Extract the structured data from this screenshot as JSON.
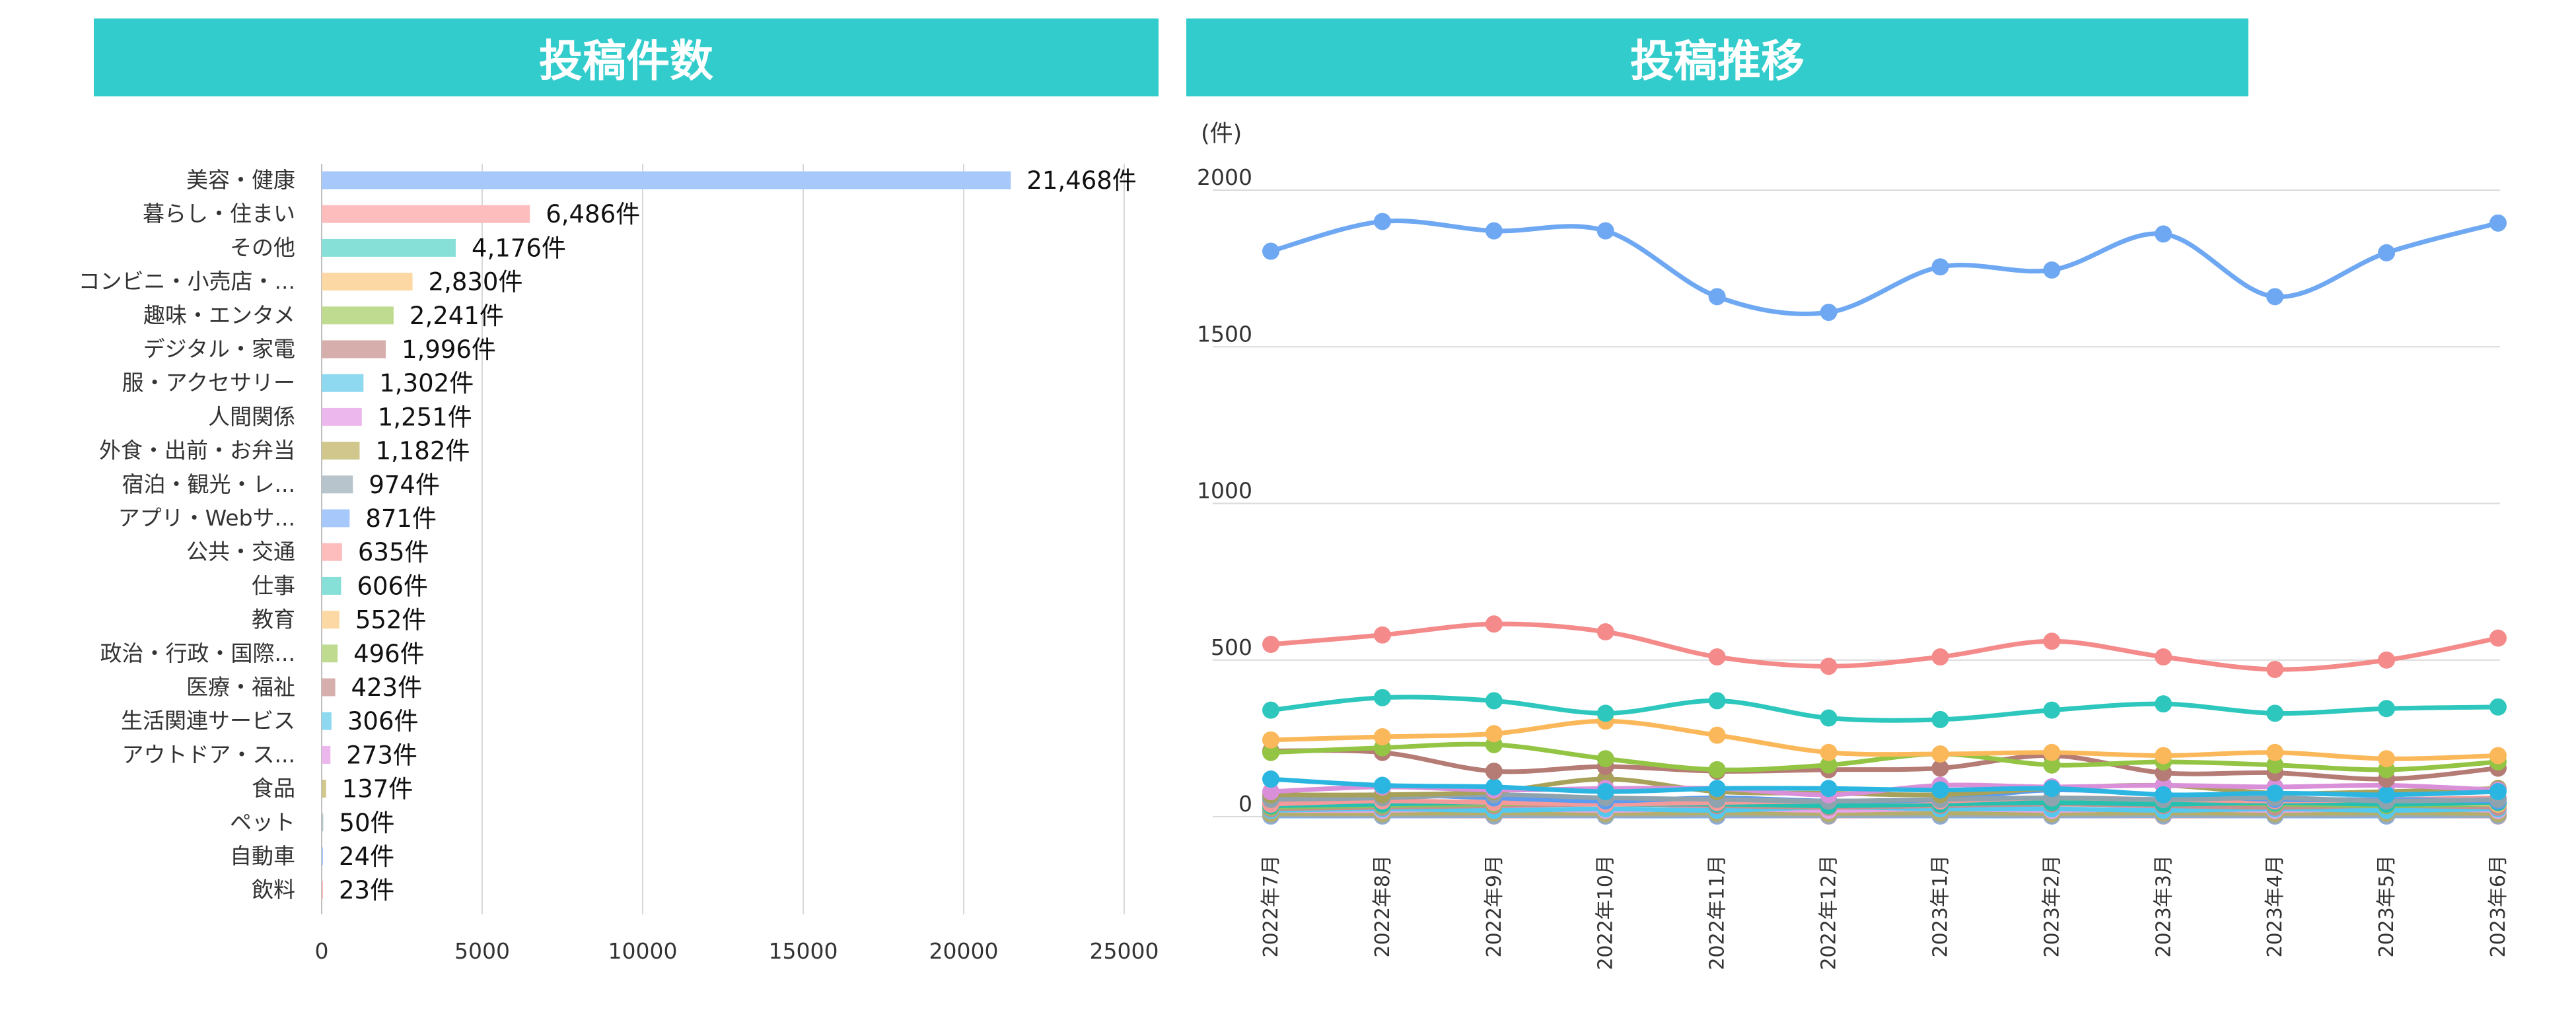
{
  "left_chart_title": "投稿件数",
  "right_chart_title": "投稿推移",
  "chart_data": [
    {
      "type": "bar",
      "orientation": "horizontal",
      "title": "投稿件数",
      "value_suffix": "件",
      "categories": [
        "美容・健康",
        "暮らし・住まい",
        "その他",
        "コンビニ・小売店・...",
        "趣味・エンタメ",
        "デジタル・家電",
        "服・アクセサリー",
        "人間関係",
        "外食・出前・お弁当",
        "宿泊・観光・レ...",
        "アプリ・Webサ...",
        "公共・交通",
        "仕事",
        "教育",
        "政治・行政・国際...",
        "医療・福祉",
        "生活関連サービス",
        "アウトドア・ス...",
        "食品",
        "ペット",
        "自動車",
        "飲料"
      ],
      "values": [
        21468,
        6486,
        4176,
        2830,
        2241,
        1996,
        1302,
        1251,
        1182,
        974,
        871,
        635,
        606,
        552,
        496,
        423,
        306,
        273,
        137,
        50,
        24,
        23
      ],
      "value_labels": [
        "21,468件",
        "6,486件",
        "4,176件",
        "2,830件",
        "2,241件",
        "1,996件",
        "1,302件",
        "1,251件",
        "1,182件",
        "974件",
        "871件",
        "635件",
        "606件",
        "552件",
        "496件",
        "423件",
        "306件",
        "273件",
        "137件",
        "50件",
        "24件",
        "23件"
      ],
      "colors": [
        "#A7C8FA",
        "#FDBDBD",
        "#86E0D8",
        "#FCD8A4",
        "#BFDB90",
        "#D6AEAC",
        "#8ED8F0",
        "#ECB7EC",
        "#D1C68C",
        "#B8C4CC",
        "#A7C8FA",
        "#FDBDBD",
        "#86E0D8",
        "#FCD8A4",
        "#BFDB90",
        "#D6AEAC",
        "#8ED8F0",
        "#ECB7EC",
        "#D1C68C",
        "#B8C4CC",
        "#A7C8FA",
        "#FDBDBD"
      ],
      "xlim": [
        0,
        25000
      ],
      "xticks": [
        "0",
        "5000",
        "10000",
        "15000",
        "20000",
        "25000"
      ]
    },
    {
      "type": "line",
      "title": "投稿推移",
      "ylabel": "(件)",
      "ylim": [
        0,
        2000
      ],
      "yticks": [
        "2000",
        "1500",
        "1000",
        "500",
        "0"
      ],
      "x": [
        "2022年7月",
        "2022年8月",
        "2022年9月",
        "2022年10月",
        "2022年11月",
        "2022年12月",
        "2023年1月",
        "2023年2月",
        "2023年3月",
        "2023年4月",
        "2023年5月",
        "2023年6月"
      ],
      "series": [
        {
          "color": "#6FA8F2",
          "values": [
            1805,
            1900,
            1870,
            1870,
            1660,
            1610,
            1755,
            1745,
            1860,
            1660,
            1800,
            1895
          ]
        },
        {
          "color": "#F48A8A",
          "values": [
            550,
            580,
            615,
            590,
            510,
            480,
            510,
            560,
            510,
            470,
            500,
            570
          ]
        },
        {
          "color": "#2DC7BE",
          "values": [
            340,
            380,
            370,
            330,
            370,
            315,
            310,
            340,
            360,
            330,
            345,
            350
          ]
        },
        {
          "color": "#FBB85A",
          "values": [
            245,
            255,
            265,
            305,
            260,
            205,
            200,
            205,
            195,
            205,
            185,
            195
          ]
        },
        {
          "color": "#93C443",
          "values": [
            205,
            220,
            230,
            185,
            150,
            165,
            200,
            165,
            175,
            165,
            150,
            175
          ]
        },
        {
          "color": "#B57B75",
          "values": [
            210,
            205,
            145,
            160,
            145,
            150,
            155,
            195,
            140,
            140,
            120,
            155
          ]
        },
        {
          "color": "#2BB6E2",
          "values": [
            120,
            100,
            95,
            80,
            90,
            90,
            85,
            90,
            70,
            75,
            70,
            80
          ]
        },
        {
          "color": "#D990D9",
          "values": [
            80,
            95,
            85,
            90,
            90,
            70,
            100,
            95,
            100,
            95,
            100,
            85
          ]
        },
        {
          "color": "#A8A15A",
          "values": [
            70,
            70,
            80,
            120,
            80,
            75,
            70,
            90,
            100,
            75,
            80,
            90
          ]
        },
        {
          "color": "#8FA3AE",
          "values": [
            55,
            60,
            70,
            60,
            55,
            50,
            55,
            60,
            55,
            60,
            50,
            55
          ]
        },
        {
          "color": "#5B9BF0",
          "values": [
            60,
            70,
            60,
            50,
            60,
            50,
            55,
            85,
            70,
            55,
            55,
            50
          ]
        },
        {
          "color": "#F59A9A",
          "values": [
            40,
            50,
            45,
            40,
            45,
            50,
            50,
            60,
            55,
            50,
            55,
            60
          ]
        },
        {
          "color": "#26C0B0",
          "values": [
            35,
            40,
            45,
            40,
            40,
            35,
            40,
            45,
            40,
            45,
            40,
            45
          ]
        },
        {
          "color": "#F8C070",
          "values": [
            45,
            40,
            50,
            55,
            45,
            40,
            45,
            50,
            45,
            50,
            45,
            40
          ]
        },
        {
          "color": "#8CC060",
          "values": [
            30,
            35,
            40,
            45,
            40,
            35,
            45,
            50,
            45,
            40,
            35,
            40
          ]
        },
        {
          "color": "#C59090",
          "values": [
            25,
            30,
            35,
            40,
            35,
            30,
            35,
            40,
            35,
            30,
            35,
            30
          ]
        },
        {
          "color": "#55C8EE",
          "values": [
            20,
            25,
            20,
            25,
            20,
            30,
            25,
            25,
            20,
            25,
            20,
            25
          ]
        },
        {
          "color": "#E6A4E6",
          "values": [
            20,
            20,
            25,
            20,
            25,
            20,
            25,
            20,
            25,
            20,
            25,
            20
          ]
        },
        {
          "color": "#B5AE6A",
          "values": [
            10,
            10,
            12,
            10,
            12,
            10,
            12,
            10,
            12,
            10,
            12,
            10
          ]
        },
        {
          "color": "#9AAAB4",
          "values": [
            5,
            4,
            5,
            4,
            5,
            4,
            5,
            4,
            5,
            4,
            5,
            4
          ]
        },
        {
          "color": "#7FB0F2",
          "values": [
            2,
            2,
            3,
            2,
            2,
            3,
            2,
            2,
            3,
            2,
            2,
            3
          ]
        },
        {
          "color": "#F77F7F",
          "values": [
            2,
            2,
            2,
            2,
            2,
            2,
            2,
            2,
            2,
            2,
            2,
            2
          ]
        }
      ]
    }
  ]
}
